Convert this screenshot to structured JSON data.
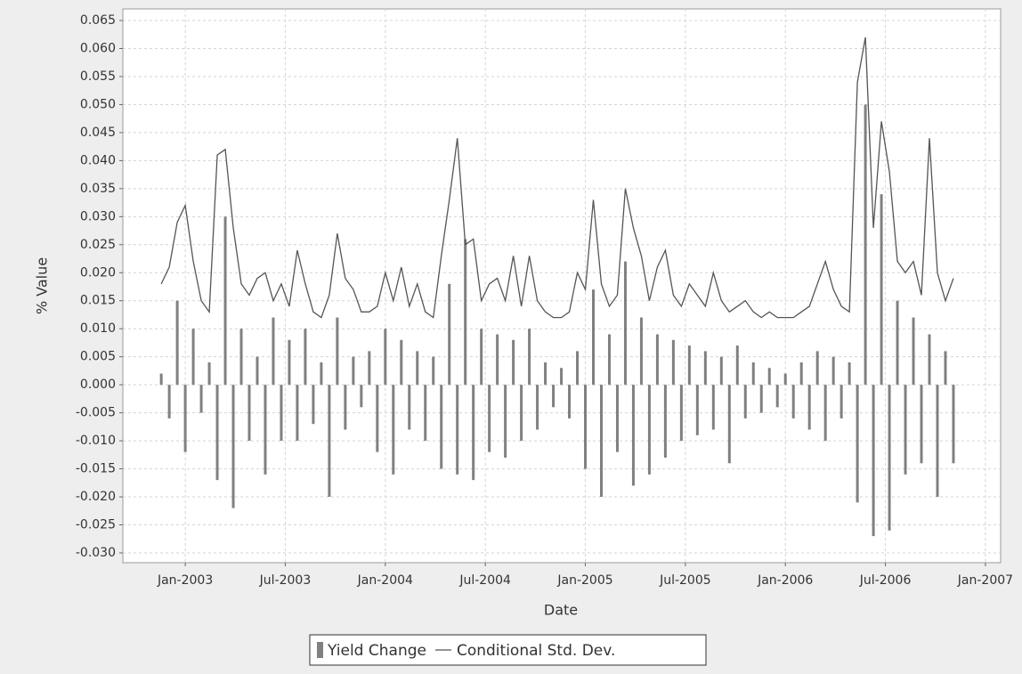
{
  "chart_data": {
    "type": "bar-line",
    "x_label": "Date",
    "y_label": "% Value",
    "x": [
      2002.88,
      2002.92,
      2002.96,
      2003.0,
      2003.04,
      2003.08,
      2003.12,
      2003.16,
      2003.2,
      2003.24,
      2003.28,
      2003.32,
      2003.36,
      2003.4,
      2003.44,
      2003.48,
      2003.52,
      2003.56,
      2003.6,
      2003.64,
      2003.68,
      2003.72,
      2003.76,
      2003.8,
      2003.84,
      2003.88,
      2003.92,
      2003.96,
      2004.0,
      2004.04,
      2004.08,
      2004.12,
      2004.16,
      2004.2,
      2004.24,
      2004.28,
      2004.32,
      2004.36,
      2004.4,
      2004.44,
      2004.48,
      2004.52,
      2004.56,
      2004.6,
      2004.64,
      2004.68,
      2004.72,
      2004.76,
      2004.8,
      2004.84,
      2004.88,
      2004.92,
      2004.96,
      2005.0,
      2005.04,
      2005.08,
      2005.12,
      2005.16,
      2005.2,
      2005.24,
      2005.28,
      2005.32,
      2005.36,
      2005.4,
      2005.44,
      2005.48,
      2005.52,
      2005.56,
      2005.6,
      2005.64,
      2005.68,
      2005.72,
      2005.76,
      2005.8,
      2005.84,
      2005.88,
      2005.92,
      2005.96,
      2006.0,
      2006.04,
      2006.08,
      2006.12,
      2006.16,
      2006.2,
      2006.24,
      2006.28,
      2006.32,
      2006.36,
      2006.4,
      2006.44,
      2006.48,
      2006.52,
      2006.56,
      2006.6,
      2006.64,
      2006.68,
      2006.72,
      2006.76,
      2006.8,
      2006.84
    ],
    "series": [
      {
        "name": "Yield Change",
        "type": "bar",
        "color": "#808080",
        "values": [
          0.002,
          -0.006,
          0.015,
          -0.012,
          0.01,
          -0.005,
          0.004,
          -0.017,
          0.03,
          -0.022,
          0.01,
          -0.01,
          0.005,
          -0.016,
          0.012,
          -0.01,
          0.008,
          -0.01,
          0.01,
          -0.007,
          0.004,
          -0.02,
          0.012,
          -0.008,
          0.005,
          -0.004,
          0.006,
          -0.012,
          0.01,
          -0.016,
          0.008,
          -0.008,
          0.006,
          -0.01,
          0.005,
          -0.015,
          0.018,
          -0.016,
          0.026,
          -0.017,
          0.01,
          -0.012,
          0.009,
          -0.013,
          0.008,
          -0.01,
          0.01,
          -0.008,
          0.004,
          -0.004,
          0.003,
          -0.006,
          0.006,
          -0.015,
          0.017,
          -0.02,
          0.009,
          -0.012,
          0.022,
          -0.018,
          0.012,
          -0.016,
          0.009,
          -0.013,
          0.008,
          -0.01,
          0.007,
          -0.009,
          0.006,
          -0.008,
          0.005,
          -0.014,
          0.007,
          -0.006,
          0.004,
          -0.005,
          0.003,
          -0.004,
          0.002,
          -0.006,
          0.004,
          -0.008,
          0.006,
          -0.01,
          0.005,
          -0.006,
          0.004,
          -0.021,
          0.05,
          -0.027,
          0.034,
          -0.026,
          0.015,
          -0.016,
          0.012,
          -0.014,
          0.009,
          -0.02,
          0.006,
          -0.014
        ]
      },
      {
        "name": "Conditional Std. Dev.",
        "type": "line",
        "color": "#555555",
        "values": [
          0.018,
          0.021,
          0.029,
          0.032,
          0.022,
          0.015,
          0.013,
          0.041,
          0.042,
          0.028,
          0.018,
          0.016,
          0.019,
          0.02,
          0.015,
          0.018,
          0.014,
          0.024,
          0.018,
          0.013,
          0.012,
          0.016,
          0.027,
          0.019,
          0.017,
          0.013,
          0.013,
          0.014,
          0.02,
          0.015,
          0.021,
          0.014,
          0.018,
          0.013,
          0.012,
          0.023,
          0.033,
          0.044,
          0.025,
          0.026,
          0.015,
          0.018,
          0.019,
          0.015,
          0.023,
          0.014,
          0.023,
          0.015,
          0.013,
          0.012,
          0.012,
          0.013,
          0.02,
          0.017,
          0.033,
          0.018,
          0.014,
          0.016,
          0.035,
          0.028,
          0.023,
          0.015,
          0.021,
          0.024,
          0.016,
          0.014,
          0.018,
          0.016,
          0.014,
          0.02,
          0.015,
          0.013,
          0.014,
          0.015,
          0.013,
          0.012,
          0.013,
          0.012,
          0.012,
          0.012,
          0.013,
          0.014,
          0.018,
          0.022,
          0.017,
          0.014,
          0.013,
          0.054,
          0.062,
          0.028,
          0.047,
          0.038,
          0.022,
          0.02,
          0.022,
          0.016,
          0.044,
          0.02,
          0.015,
          0.019
        ]
      }
    ],
    "xlim": [
      2002.688,
      2007.076
    ],
    "xticks": [
      {
        "value": 2003,
        "label": "Jan-2003"
      },
      {
        "value": 2003.5,
        "label": "Jul-2003"
      },
      {
        "value": 2004,
        "label": "Jan-2004"
      },
      {
        "value": 2004.5,
        "label": "Jul-2004"
      },
      {
        "value": 2005,
        "label": "Jan-2005"
      },
      {
        "value": 2005.5,
        "label": "Jul-2005"
      },
      {
        "value": 2006,
        "label": "Jan-2006"
      },
      {
        "value": 2006.5,
        "label": "Jul-2006"
      },
      {
        "value": 2007,
        "label": "Jan-2007"
      }
    ],
    "ylim": [
      -0.03175,
      0.06707
    ],
    "yticks": [
      {
        "value": -0.03,
        "label": "-0.030"
      },
      -0.025,
      {
        "value": -0.02,
        "label": "-0.020"
      },
      -0.015,
      {
        "value": -0.01,
        "label": "-0.010"
      },
      -0.005,
      {
        "value": 0,
        "label": "0.000"
      },
      0.005,
      {
        "value": 0.01,
        "label": "0.010"
      },
      0.015,
      {
        "value": 0.02,
        "label": "0.020"
      },
      0.025,
      {
        "value": 0.03,
        "label": "0.030"
      },
      0.035,
      {
        "value": 0.04,
        "label": "0.040"
      },
      0.045,
      {
        "value": 0.05,
        "label": "0.050"
      },
      0.055,
      {
        "value": 0.06,
        "label": "0.060"
      },
      0.065
    ],
    "grid": true
  }
}
